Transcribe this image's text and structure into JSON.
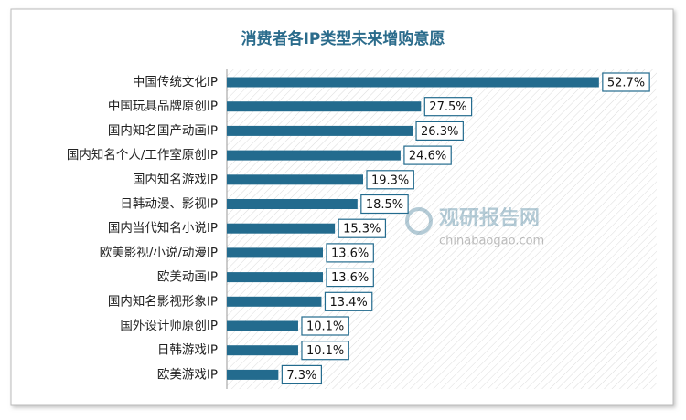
{
  "chart_data": {
    "type": "bar",
    "orientation": "horizontal",
    "title": "消费者各IP类型未来增购意愿",
    "categories": [
      "中国传统文化IP",
      "中国玩具品牌原创IP",
      "国内知名国产动画IP",
      "国内知名个人/工作室原创IP",
      "国内知名游戏IP",
      "日韩动漫、影视IP",
      "国内当代知名小说IP",
      "欧美影视/小说/动漫IP",
      "欧美动画IP",
      "国内知名影视形象IP",
      "国外设计师原创IP",
      "日韩游戏IP",
      "欧美游戏IP"
    ],
    "values": [
      52.7,
      27.5,
      26.3,
      24.6,
      19.3,
      18.5,
      15.3,
      13.6,
      13.6,
      13.4,
      10.1,
      10.1,
      7.3
    ],
    "value_labels": [
      "52.7%",
      "27.5%",
      "26.3%",
      "24.6%",
      "19.3%",
      "18.5%",
      "15.3%",
      "13.6%",
      "13.6%",
      "13.4%",
      "10.1%",
      "10.1%",
      "7.3%"
    ],
    "color": "#236b8e",
    "watermark": {
      "name": "观研报告网",
      "url": "chinabaogao.com"
    }
  }
}
